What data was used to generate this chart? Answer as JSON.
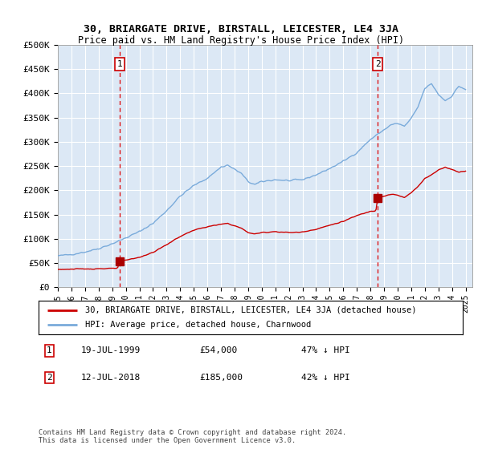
{
  "title": "30, BRIARGATE DRIVE, BIRSTALL, LEICESTER, LE4 3JA",
  "subtitle": "Price paid vs. HM Land Registry's House Price Index (HPI)",
  "ylim": [
    0,
    500000
  ],
  "yticks": [
    0,
    50000,
    100000,
    150000,
    200000,
    250000,
    300000,
    350000,
    400000,
    450000,
    500000
  ],
  "ytick_labels": [
    "£0",
    "£50K",
    "£100K",
    "£150K",
    "£200K",
    "£250K",
    "£300K",
    "£350K",
    "£400K",
    "£450K",
    "£500K"
  ],
  "xmin_year": 1995.0,
  "xmax_year": 2025.5,
  "xtick_years": [
    1995,
    1996,
    1997,
    1998,
    1999,
    2000,
    2001,
    2002,
    2003,
    2004,
    2005,
    2006,
    2007,
    2008,
    2009,
    2010,
    2011,
    2012,
    2013,
    2014,
    2015,
    2016,
    2017,
    2018,
    2019,
    2020,
    2021,
    2022,
    2023,
    2024,
    2025
  ],
  "background_color": "#dce8f5",
  "grid_color": "#ffffff",
  "red_line_color": "#cc0000",
  "blue_line_color": "#7aabdb",
  "marker1_year": 1999.54,
  "marker1_price": 54000,
  "marker2_year": 2018.53,
  "marker2_price": 185000,
  "legend_red_label": "30, BRIARGATE DRIVE, BIRSTALL, LEICESTER, LE4 3JA (detached house)",
  "legend_blue_label": "HPI: Average price, detached house, Charnwood",
  "annotation1_date": "19-JUL-1999",
  "annotation1_price": "£54,000",
  "annotation1_hpi": "47% ↓ HPI",
  "annotation2_date": "12-JUL-2018",
  "annotation2_price": "£185,000",
  "annotation2_hpi": "42% ↓ HPI",
  "footer": "Contains HM Land Registry data © Crown copyright and database right 2024.\nThis data is licensed under the Open Government Licence v3.0."
}
